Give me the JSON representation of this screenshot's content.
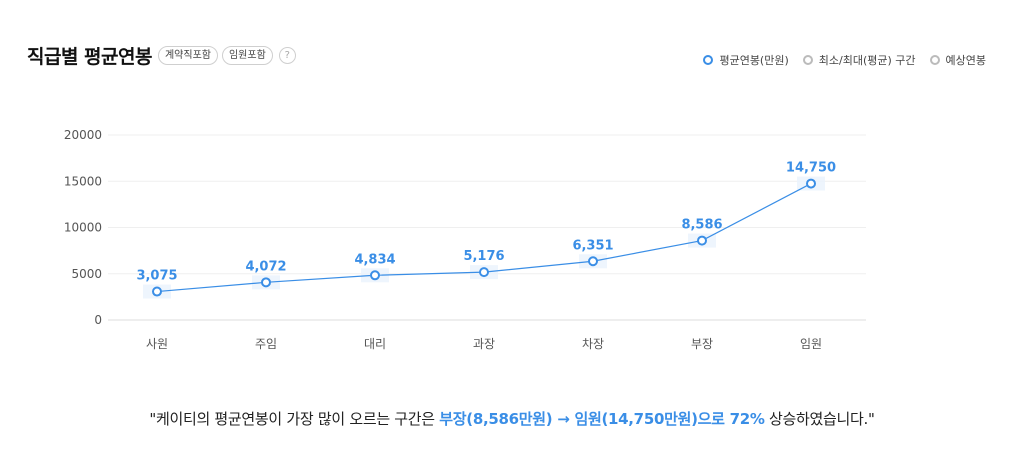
{
  "header": {
    "title": "직급별 평균연봉",
    "chips": [
      "계약직포함",
      "임원포함"
    ],
    "help": "?"
  },
  "legend": [
    {
      "label": "평균연봉(만원)",
      "active": true
    },
    {
      "label": "최소/최대(평균) 구간",
      "active": false
    },
    {
      "label": "예상연봉",
      "active": false
    }
  ],
  "chart_data": {
    "type": "line",
    "categories": [
      "사원",
      "주임",
      "대리",
      "과장",
      "차장",
      "부장",
      "임원"
    ],
    "series": [
      {
        "name": "평균연봉(만원)",
        "values": [
          3075,
          4072,
          4834,
          5176,
          6351,
          8586,
          14750
        ]
      }
    ],
    "data_labels": [
      "3,075",
      "4,072",
      "4,834",
      "5,176",
      "6,351",
      "8,586",
      "14,750"
    ],
    "yticks": [
      0,
      5000,
      10000,
      15000,
      20000
    ],
    "ylim": [
      0,
      20000
    ],
    "grid": true,
    "color": "#3a8ee6"
  },
  "summary": {
    "prefix": "\"케이티의 평균연봉이 가장 많이 오르는 구간은 ",
    "highlight": "부장(8,586만원) → 임원(14,750만원)으로 72%",
    "suffix": " 상승하였습니다.\""
  }
}
